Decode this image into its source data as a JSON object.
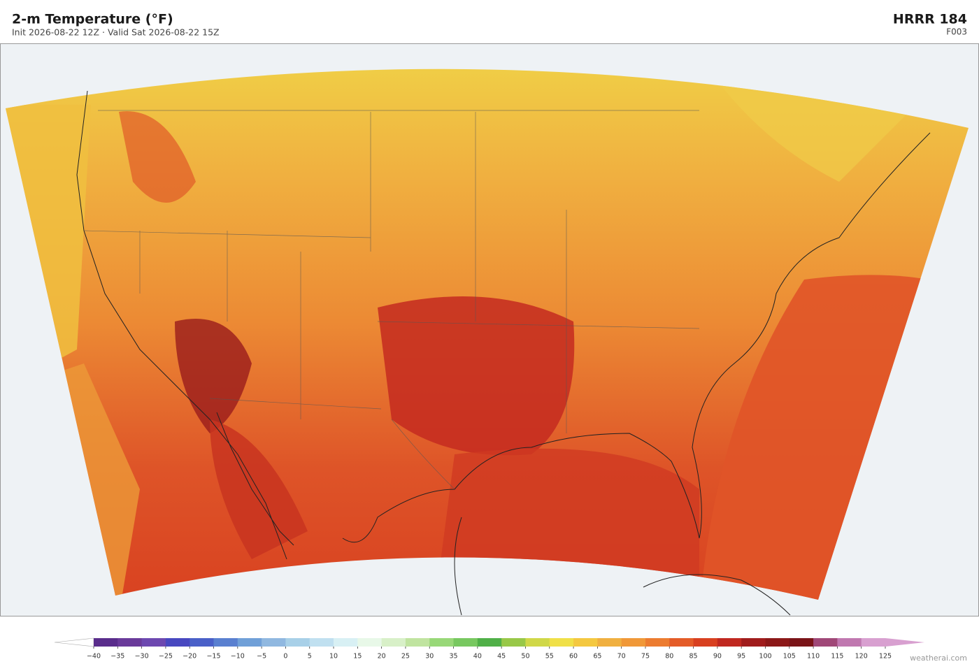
{
  "header": {
    "title": "2-m Temperature  (°F)",
    "subtitle": "Init 2026-08-22 12Z  ·  Valid Sat 2026-08-22 15Z",
    "model": "HRRR  184",
    "forecast_hour": "F003"
  },
  "colorbar": {
    "ticks": [
      {
        "value": -40,
        "label": "−40"
      },
      {
        "value": -35,
        "label": "−35"
      },
      {
        "value": -30,
        "label": "−30"
      },
      {
        "value": -25,
        "label": "−25"
      },
      {
        "value": -20,
        "label": "−20"
      },
      {
        "value": -15,
        "label": "−15"
      },
      {
        "value": -10,
        "label": "−10"
      },
      {
        "value": -5,
        "label": "−5"
      },
      0,
      5,
      10,
      15,
      20,
      25,
      30,
      35,
      40,
      45,
      50,
      55,
      60,
      65,
      70,
      75,
      80,
      85,
      90,
      95,
      100,
      105,
      110,
      115,
      120,
      125
    ],
    "colors": [
      "#5a2d8c",
      "#6a3a9a",
      "#6d48b0",
      "#4848c0",
      "#4a60c8",
      "#5a80d0",
      "#70a0d8",
      "#90b8e0",
      "#a8d0e8",
      "#c0e0f0",
      "#d8f0f4",
      "#e8f8e8",
      "#d8f0c8",
      "#c0e4a0",
      "#98d878",
      "#78c860",
      "#50b048",
      "#98c848",
      "#d0d848",
      "#f0e048",
      "#f4c840",
      "#f0b040",
      "#f09838",
      "#ec7c30",
      "#e45c28",
      "#d84020",
      "#c02820",
      "#a01c1c",
      "#8c1818",
      "#7a1418",
      "#a04878",
      "#c078b0",
      "#d8a0d0"
    ],
    "under_color": "#ffffff",
    "over_color": "#d8a0d0"
  },
  "watermark": "weatherai.com"
}
